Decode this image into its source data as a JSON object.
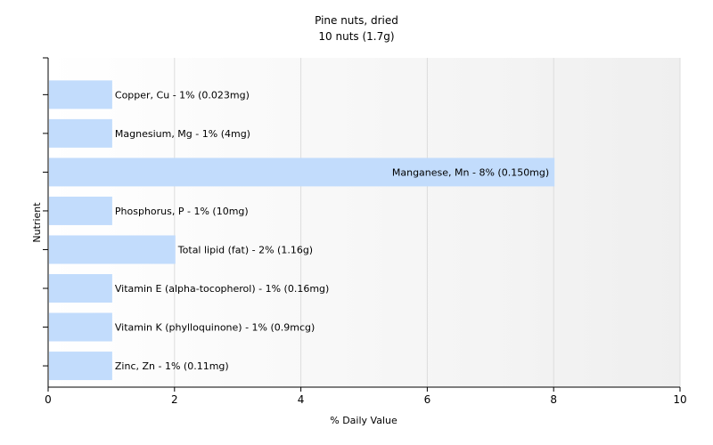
{
  "chart_data": {
    "type": "bar",
    "orientation": "horizontal",
    "title": "Pine nuts, dried",
    "subtitle": "10 nuts (1.7g)",
    "xlabel": "% Daily Value",
    "ylabel": "Nutrient",
    "xlim": [
      0,
      10
    ],
    "xticks": [
      0,
      2,
      4,
      6,
      8,
      10
    ],
    "grid": true,
    "bar_color": "#c2dcfc",
    "bars": [
      {
        "label": "Copper, Cu - 1% (0.023mg)",
        "value": 1
      },
      {
        "label": "Magnesium, Mg - 1% (4mg)",
        "value": 1
      },
      {
        "label": "Manganese, Mn - 8% (0.150mg)",
        "value": 8
      },
      {
        "label": "Phosphorus, P - 1% (10mg)",
        "value": 1
      },
      {
        "label": "Total lipid (fat) - 2% (1.16g)",
        "value": 2
      },
      {
        "label": "Vitamin E (alpha-tocopherol) - 1% (0.16mg)",
        "value": 1
      },
      {
        "label": "Vitamin K (phylloquinone) - 1% (0.9mcg)",
        "value": 1
      },
      {
        "label": "Zinc, Zn - 1% (0.11mg)",
        "value": 1
      }
    ]
  }
}
